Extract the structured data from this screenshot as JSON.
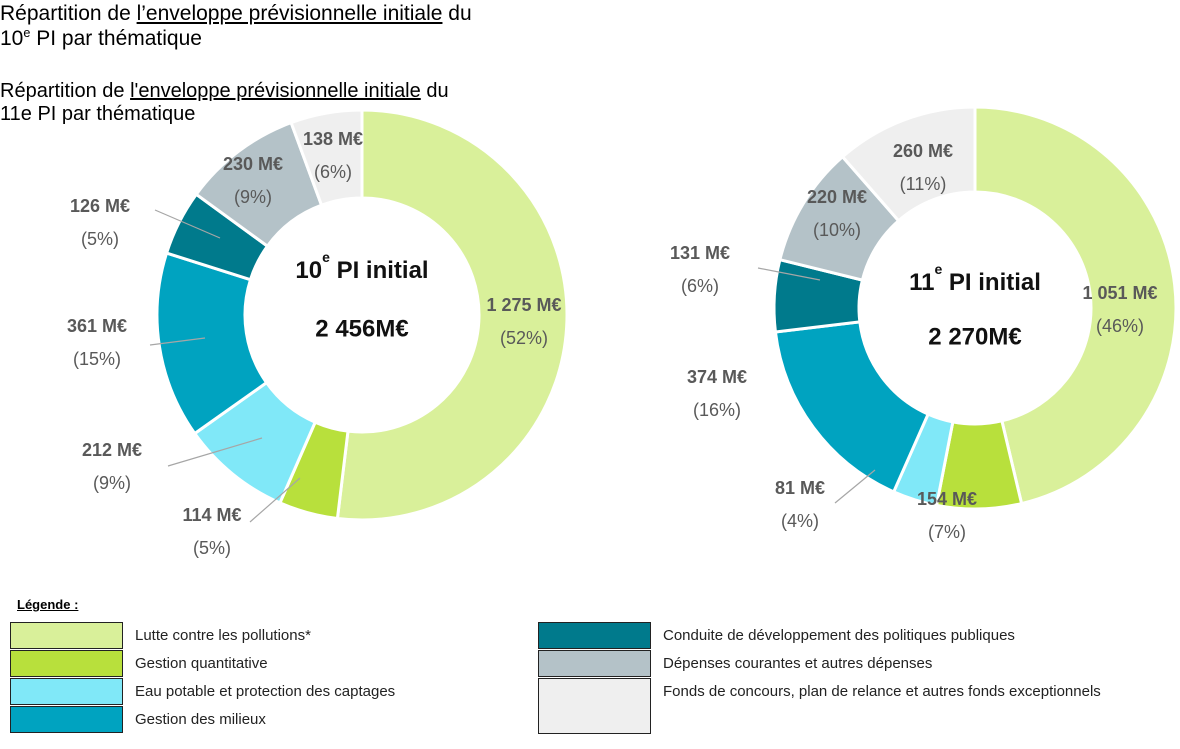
{
  "chart_data": [
    {
      "type": "pie",
      "donut": true,
      "title_parts": [
        "Répartition de ",
        "l’enveloppe prévisionnelle initiale",
        " du 10",
        "e",
        " PI par thématique"
      ],
      "title_underline": 1,
      "title_sup": 3,
      "center_title": [
        "10",
        "e",
        " PI initial"
      ],
      "total": 2456,
      "total_label": "2 456M€",
      "categories": [
        "Lutte contre les pollutions*",
        "Gestion quantitative",
        "Eau potable et protection des captages",
        "Gestion des milieux",
        "Conduite de développement des politiques publiques",
        "Dépenses courantes et autres dépenses",
        "Fonds de concours, plan de relance et autres fonds exceptionnels"
      ],
      "values": [
        1275,
        114,
        212,
        361,
        126,
        230,
        138
      ],
      "value_labels": [
        "1 275 M€",
        "114 M€",
        "212 M€",
        "361 M€",
        "126 M€",
        "230 M€",
        "138 M€"
      ],
      "percent_labels": [
        "(52%)",
        "(5%)",
        "(9%)",
        "(15%)",
        "(5%)",
        "(9%)",
        "(6%)"
      ],
      "colors": [
        "#d9f09a",
        "#b8e03c",
        "#80e8f8",
        "#00a3c0",
        "#007a8c",
        "#b4c2c8",
        "#efefef"
      ]
    },
    {
      "type": "pie",
      "donut": true,
      "title_parts": [
        "Répartition de ",
        "l'enveloppe prévisionnelle initiale",
        " du 11e PI par thématique"
      ],
      "title_underline": 1,
      "center_title": [
        "11",
        "e",
        " PI initial"
      ],
      "total": 2270,
      "total_label": "2 270M€",
      "categories": [
        "Lutte contre les pollutions*",
        "Gestion quantitative",
        "Eau potable et protection des captages",
        "Gestion des milieux",
        "Conduite de développement des politiques publiques",
        "Dépenses courantes et autres dépenses",
        "Fonds de concours, plan de relance et autres fonds exceptionnels"
      ],
      "values": [
        1051,
        154,
        81,
        374,
        131,
        220,
        260
      ],
      "value_labels": [
        "1 051 M€",
        "154 M€",
        "81 M€",
        "374 M€",
        "131 M€",
        "220 M€",
        "260 M€"
      ],
      "percent_labels": [
        "(46%)",
        "(7%)",
        "(4%)",
        "(16%)",
        "(6%)",
        "(10%)",
        "(11%)"
      ],
      "colors": [
        "#d9f09a",
        "#b8e03c",
        "#80e8f8",
        "#00a3c0",
        "#007a8c",
        "#b4c2c8",
        "#efefef"
      ]
    }
  ],
  "legend_title": "Légende :"
}
